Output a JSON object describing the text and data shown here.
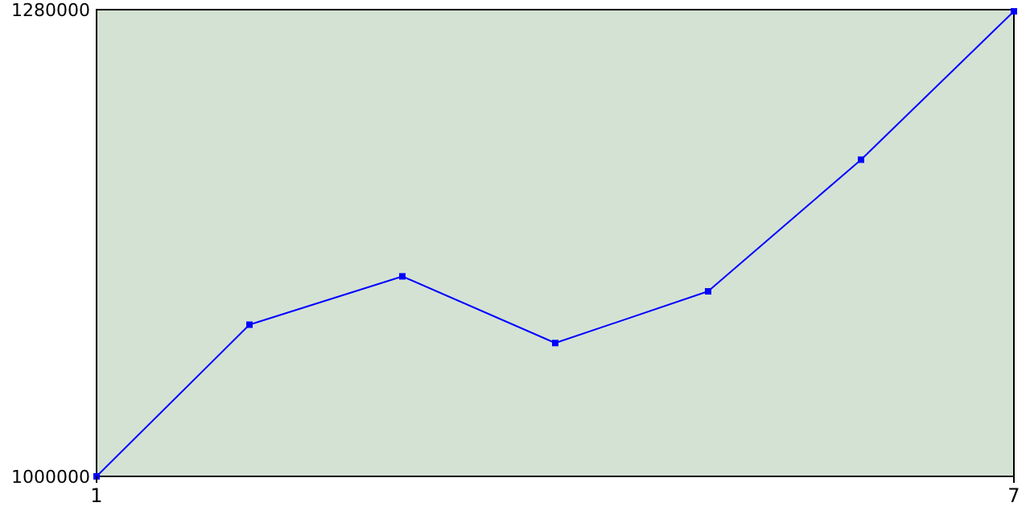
{
  "chart_data": {
    "type": "line",
    "x": [
      1,
      2,
      3,
      4,
      5,
      6,
      7
    ],
    "series": [
      {
        "color": "#0000ff",
        "values": [
          1000000,
          1091000,
          1120000,
          1080000,
          1111000,
          1190000,
          1279000
        ]
      }
    ],
    "xlim": [
      1,
      7
    ],
    "xticks": [
      1,
      7
    ],
    "ylim": [
      1000000,
      1280000
    ],
    "yticks": [
      1000000,
      1280000
    ],
    "grid": false,
    "marker": "square",
    "line_style": "solid"
  }
}
